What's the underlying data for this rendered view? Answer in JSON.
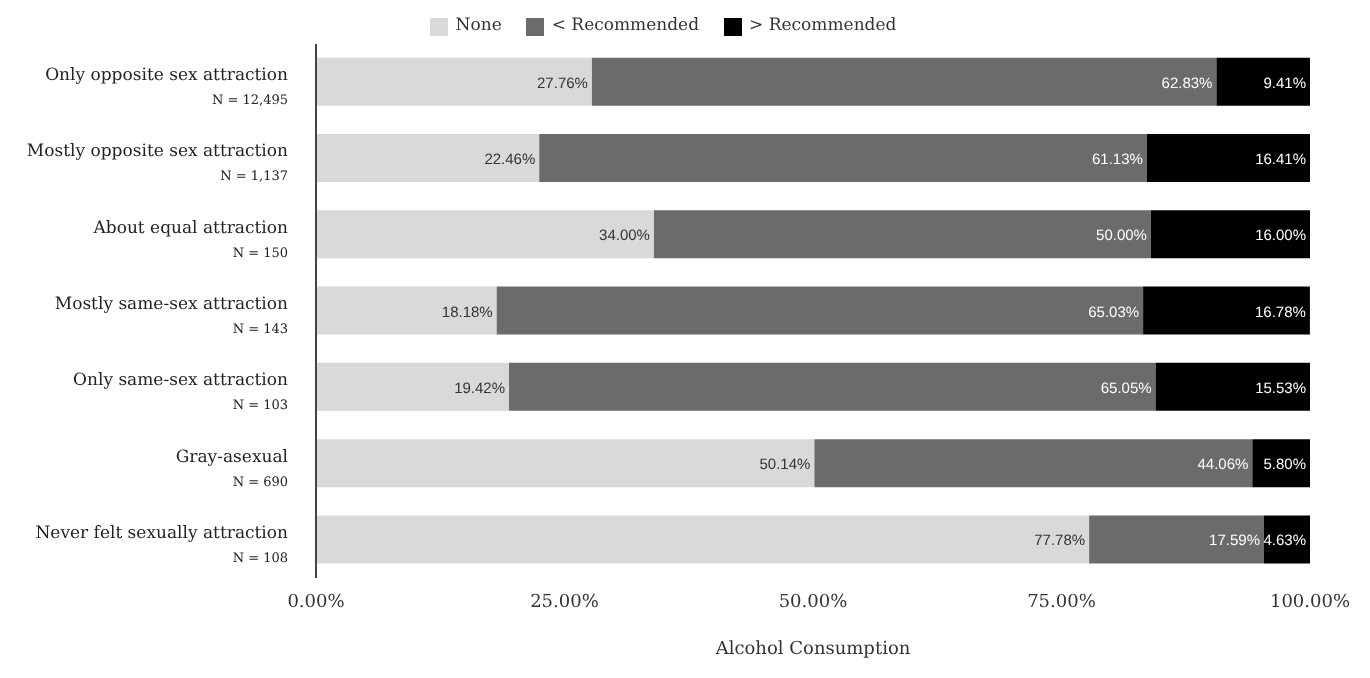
{
  "chart_data": {
    "type": "bar",
    "orientation": "horizontal",
    "stacked": true,
    "xlabel": "Alcohol Consumption",
    "legend": "top",
    "grid": false,
    "categories": [
      "Only opposite sex attraction\nN = 12,495",
      "Mostly opposite sex attraction\nN = 1,137",
      "About equal attraction\nN = 150",
      "Mostly same-sex attraction\nN = 143",
      "Only same-sex attraction\nN = 103",
      "Gray-asexual\nN = 690",
      "Never felt sexually attraction\nN = 108"
    ],
    "xlim": [
      0,
      100
    ],
    "xticks": [
      {
        "value": 0,
        "label": "0.00%"
      },
      {
        "value": 25,
        "label": "25.00%"
      },
      {
        "value": 50,
        "label": "50.00%"
      },
      {
        "value": 75,
        "label": "75.00%"
      },
      {
        "value": 100,
        "label": "100.00%"
      }
    ],
    "series": [
      {
        "name": "None",
        "color": "#d9d9d9",
        "values": [
          27.76,
          22.46,
          34.0,
          18.18,
          19.42,
          50.14,
          77.78
        ],
        "value_labels": [
          "27.76%",
          "22.46%",
          "34.00%",
          "18.18%",
          "19.42%",
          "50.14%",
          "77.78%"
        ]
      },
      {
        "name": "< Recommended",
        "color": "#6b6b6b",
        "values": [
          62.83,
          61.13,
          50.0,
          65.03,
          65.05,
          44.06,
          17.59
        ],
        "value_labels": [
          "62.83%",
          "61.13%",
          "50.00%",
          "65.03%",
          "65.05%",
          "44.06%",
          "17.59%"
        ]
      },
      {
        "name": "> Recommended",
        "color": "#000000",
        "values": [
          9.41,
          16.41,
          16.0,
          16.78,
          15.53,
          5.8,
          4.63
        ],
        "value_labels": [
          "9.41%",
          "16.41%",
          "16.00%",
          "16.78%",
          "15.53%",
          "5.80%",
          "4.63%"
        ]
      }
    ]
  }
}
